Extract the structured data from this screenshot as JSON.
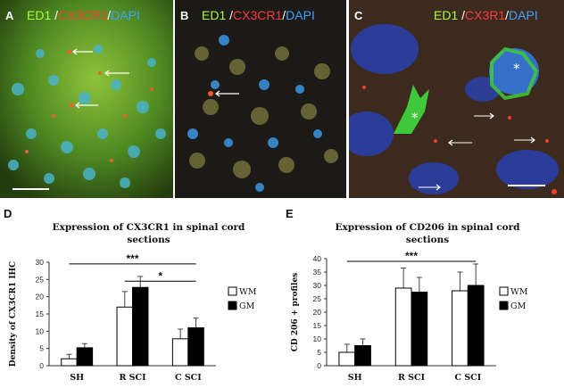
{
  "panels": [
    {
      "letter": "A",
      "stain": {
        "green": "ED1",
        "sep1": " /",
        "red": "CX3CR1",
        "sep2": "/",
        "blue": "DAPI"
      }
    },
    {
      "letter": "B",
      "stain": {
        "green": "ED1",
        "sep1": " /",
        "red": "CX3CR1",
        "sep2": "/",
        "blue": "DAPI"
      }
    },
    {
      "letter": "C",
      "stain": {
        "green": "ED1",
        "sep1": " /",
        "red": "CX3R1",
        "sep2": "/",
        "blue": "DAPI"
      }
    }
  ],
  "colors": {
    "green": "#a6ff3c",
    "red": "#ff3b3b",
    "blue": "#3fa3ff",
    "wm": "#ffffff",
    "gm": "#000000"
  },
  "chart_data": [
    {
      "panel": "D",
      "type": "bar",
      "title": [
        "Expression of CX3CR1 in spinal cord",
        "sections"
      ],
      "ylabel": "Density of CX3CR1 IHC",
      "xlabel": "",
      "categories": [
        "SH",
        "R SCI",
        "C SCI"
      ],
      "ylim": [
        0,
        30
      ],
      "yticks": [
        0,
        5,
        10,
        15,
        20,
        25,
        30
      ],
      "legend": "right",
      "grid": false,
      "series": [
        {
          "name": "WM",
          "values": [
            2,
            17,
            7.8
          ],
          "errors": [
            1.3,
            4.5,
            2.8
          ]
        },
        {
          "name": "GM",
          "values": [
            5.2,
            22.7,
            11
          ],
          "errors": [
            1.2,
            3.2,
            2.8
          ]
        }
      ],
      "significance": [
        {
          "label": "***",
          "from": "SH",
          "to": "C SCI",
          "y": 29.5
        },
        {
          "label": "*",
          "from": "R SCI",
          "to": "C SCI",
          "y": 24.5
        }
      ]
    },
    {
      "panel": "E",
      "type": "bar",
      "title": [
        "Expression of CD206 in spinal cord",
        "sections"
      ],
      "ylabel": "CD 206 +  profiles",
      "xlabel": "",
      "categories": [
        "SH",
        "R SCI",
        "C SCI"
      ],
      "ylim": [
        0,
        40
      ],
      "yticks": [
        0,
        5,
        10,
        15,
        20,
        25,
        30,
        35,
        40
      ],
      "legend": "right",
      "grid": false,
      "series": [
        {
          "name": "WM",
          "values": [
            5,
            29,
            28
          ],
          "errors": [
            3,
            7.5,
            7
          ]
        },
        {
          "name": "GM",
          "values": [
            7.5,
            27.5,
            30
          ],
          "errors": [
            2.5,
            5.5,
            8
          ]
        }
      ],
      "significance": [
        {
          "label": "***",
          "from": "SH",
          "to": "C SCI",
          "y": 39
        }
      ]
    }
  ]
}
